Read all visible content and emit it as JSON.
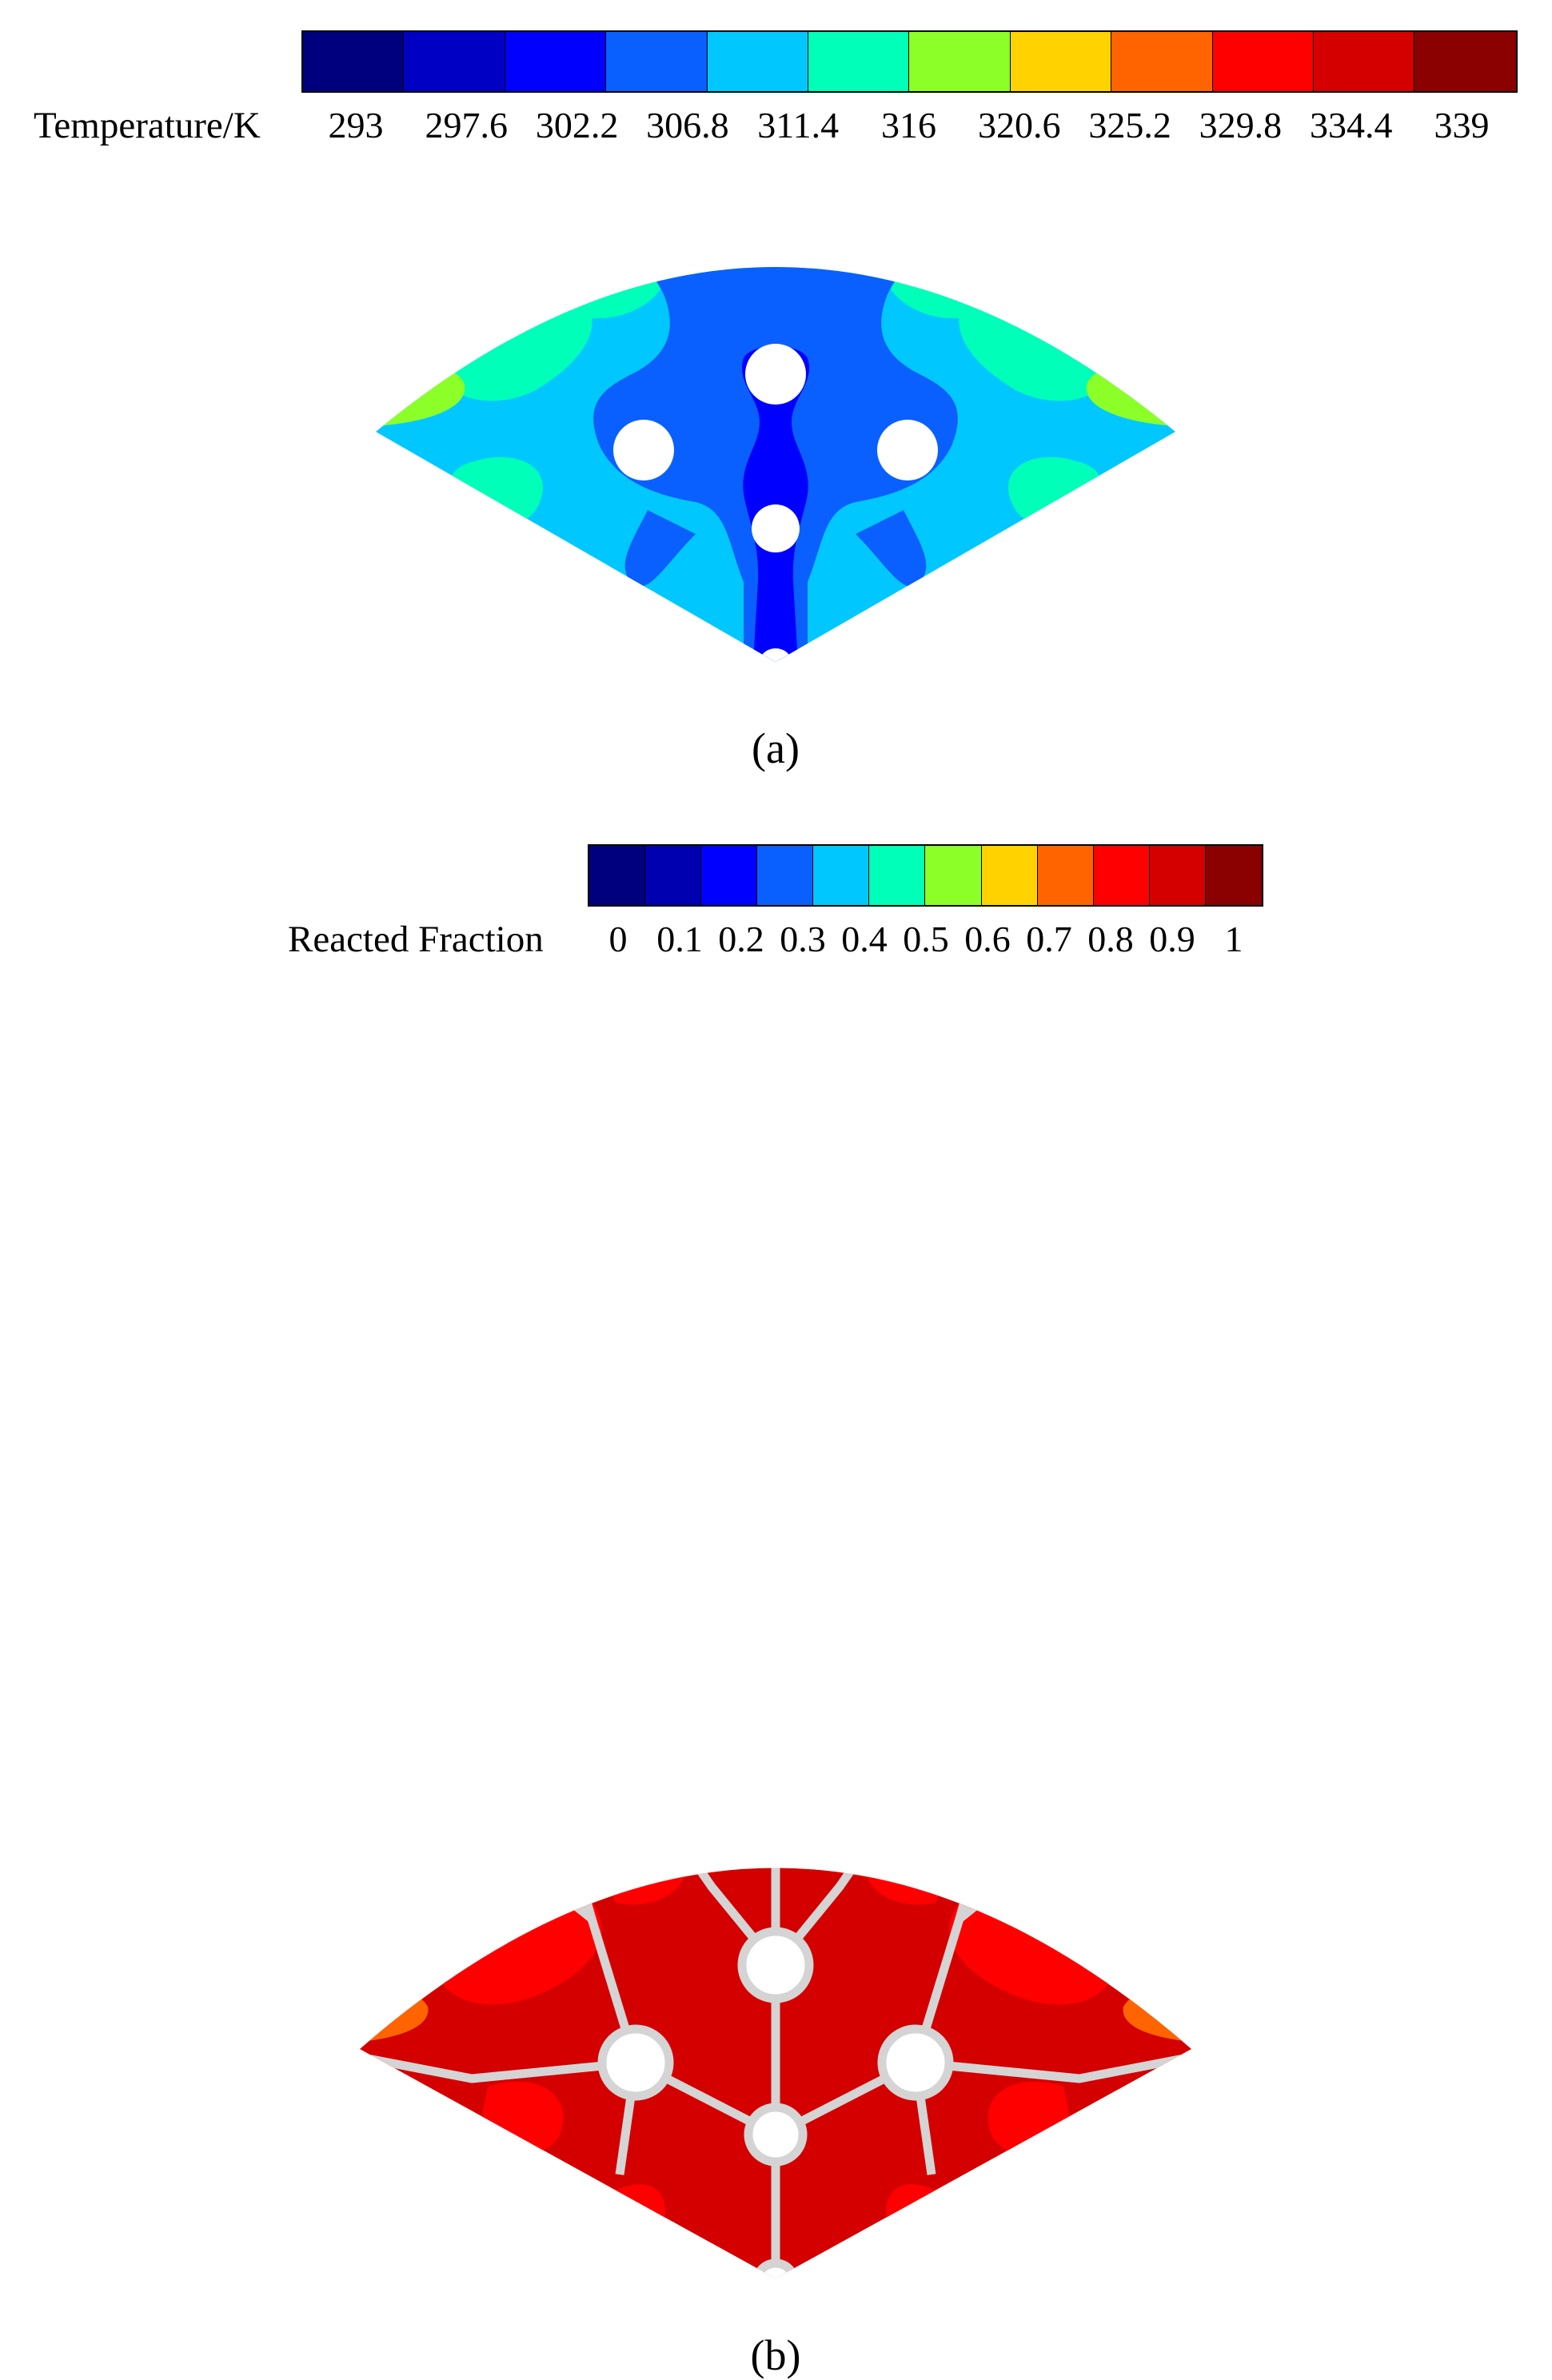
{
  "panel_a": {
    "label": "(a)",
    "colorbar_title": "Temperature/K",
    "colors": [
      "#00007f",
      "#0000c4",
      "#0000ff",
      "#0a5fff",
      "#00c8ff",
      "#00ffb8",
      "#8cff28",
      "#ffd200",
      "#ff6400",
      "#ff0000",
      "#d40000",
      "#8b0000"
    ],
    "tick_labels": [
      "293",
      "297.6",
      "302.2",
      "306.8",
      "311.4",
      "316",
      "320.6",
      "325.2",
      "329.8",
      "334.4",
      "339"
    ]
  },
  "panel_b": {
    "label": "(b)",
    "colorbar_title": "Reacted Fraction",
    "colors": [
      "#00007f",
      "#0000b0",
      "#0000ff",
      "#0a5fff",
      "#00c8ff",
      "#00ffb8",
      "#8cff28",
      "#ffd200",
      "#ff6400",
      "#ff0000",
      "#d40000",
      "#8b0000"
    ],
    "tick_labels": [
      "0",
      "0.1",
      "0.2",
      "0.3",
      "0.4",
      "0.5",
      "0.6",
      "0.7",
      "0.8",
      "0.9",
      "1"
    ]
  }
}
